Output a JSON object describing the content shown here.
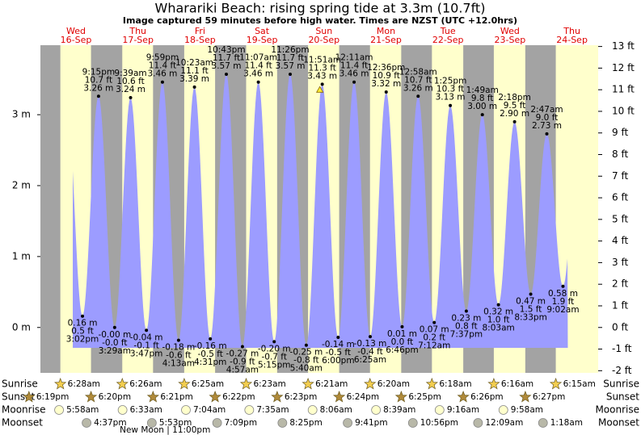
{
  "chart_data": {
    "type": "tide",
    "title": "Wharariki Beach: rising  spring tide at 3.3m (10.7ft)",
    "subtitle": "Image captured 59 minutes before high water. Times are NZST (UTC +12.0hrs)",
    "ylim": [
      -0.64,
      3.98
    ],
    "yticks": [
      {
        "value": 0,
        "label": "0 m"
      },
      {
        "value": 1,
        "label": "1 m"
      },
      {
        "value": 2,
        "label": "2 m"
      },
      {
        "value": 3,
        "label": "3 m"
      }
    ],
    "y2lim": [
      -2.1,
      13.06
    ],
    "y2ticks": [
      {
        "value": -2,
        "label": "-2 ft"
      },
      {
        "value": -1,
        "label": "-1 ft"
      },
      {
        "value": 0,
        "label": "0 ft"
      },
      {
        "value": 1,
        "label": "1 ft"
      },
      {
        "value": 2,
        "label": "2 ft"
      },
      {
        "value": 3,
        "label": "3 ft"
      },
      {
        "value": 4,
        "label": "4 ft"
      },
      {
        "value": 5,
        "label": "5 ft"
      },
      {
        "value": 6,
        "label": "6 ft"
      },
      {
        "value": 7,
        "label": "7 ft"
      },
      {
        "value": 8,
        "label": "8 ft"
      },
      {
        "value": 9,
        "label": "9 ft"
      },
      {
        "value": 10,
        "label": "10 ft"
      },
      {
        "value": 11,
        "label": "11 ft"
      },
      {
        "value": 12,
        "label": "12 ft"
      },
      {
        "value": 13,
        "label": "13 ft"
      }
    ],
    "row_labels": [
      "Sunrise",
      "Sunset",
      "Moonrise",
      "Moonset"
    ],
    "prior_sunset": "6:19pm",
    "days": [
      {
        "weekday": "Wed",
        "date": "16-Sep",
        "sunrise": "6:28am",
        "sunset": "6:20pm",
        "moonrise": "5:58am",
        "moonset": "4:37pm",
        "tides": [
          {
            "time": "3:02pm",
            "m": 0.16,
            "m_label": "0.16 m",
            "ft_label": "0.5 ft"
          },
          {
            "time": "9:15pm",
            "m": 3.26,
            "m_label": "3.26 m",
            "ft_label": "10.7 ft"
          }
        ]
      },
      {
        "weekday": "Thu",
        "date": "17-Sep",
        "sunrise": "6:26am",
        "sunset": "6:21pm",
        "moonrise": "6:33am",
        "moonset": "5:53pm",
        "new_moon": {
          "label": "New Moon",
          "time": "11:00pm"
        },
        "tides": [
          {
            "time": "3:29am",
            "m": 0,
            "m_label": "-0.00 m",
            "ft_label": "-0.0 ft"
          },
          {
            "time": "9:39am",
            "m": 3.24,
            "m_label": "3.24 m",
            "ft_label": "10.6 ft"
          },
          {
            "time": "3:47pm",
            "m": -0.04,
            "m_label": "-0.04 m",
            "ft_label": "-0.1 ft"
          },
          {
            "time": "9:59pm",
            "m": 3.46,
            "m_label": "3.46 m",
            "ft_label": "11.4 ft"
          }
        ]
      },
      {
        "weekday": "Fri",
        "date": "18-Sep",
        "sunrise": "6:25am",
        "sunset": "6:22pm",
        "moonrise": "7:04am",
        "moonset": "7:09pm",
        "tides": [
          {
            "time": "4:13am",
            "m": -0.18,
            "m_label": "-0.18 m",
            "ft_label": "-0.6 ft"
          },
          {
            "time": "10:23am",
            "m": 3.39,
            "m_label": "3.39 m",
            "ft_label": "11.1 ft"
          },
          {
            "time": "4:31pm",
            "m": -0.16,
            "m_label": "-0.16 m",
            "ft_label": "-0.5 ft"
          },
          {
            "time": "10:43pm",
            "m": 3.57,
            "m_label": "3.57 m",
            "ft_label": "11.7 ft"
          }
        ]
      },
      {
        "weekday": "Sat",
        "date": "19-Sep",
        "sunrise": "6:23am",
        "sunset": "6:23pm",
        "moonrise": "7:35am",
        "moonset": "8:25pm",
        "tides": [
          {
            "time": "4:57am",
            "m": -0.27,
            "m_label": "-0.27 m",
            "ft_label": "-0.9 ft"
          },
          {
            "time": "11:07am",
            "m": 3.46,
            "m_label": "3.46 m",
            "ft_label": "11.4 ft"
          },
          {
            "time": "5:15pm",
            "m": -0.2,
            "m_label": "-0.20 m",
            "ft_label": "-0.7 ft"
          },
          {
            "time": "11:26pm",
            "m": 3.57,
            "m_label": "3.57 m",
            "ft_label": "11.7 ft"
          }
        ]
      },
      {
        "weekday": "Sun",
        "date": "20-Sep",
        "sunrise": "6:21am",
        "sunset": "6:24pm",
        "moonrise": "8:06am",
        "moonset": "9:41pm",
        "tides": [
          {
            "time": "5:40am",
            "m": -0.25,
            "m_label": "-0.25 m",
            "ft_label": "-0.8 ft"
          },
          {
            "time": "11:51am",
            "m": 3.43,
            "m_label": "3.43 m",
            "ft_label": "11.3 ft"
          },
          {
            "time": "6:00pm",
            "m": -0.14,
            "m_label": "-0.14 m",
            "ft_label": "-0.5 ft"
          }
        ]
      },
      {
        "weekday": "Mon",
        "date": "21-Sep",
        "sunrise": "6:20am",
        "sunset": "6:25pm",
        "moonrise": "8:39am",
        "moonset": "10:56pm",
        "tides": [
          {
            "time": "12:11am",
            "m": 3.46,
            "m_label": "3.46 m",
            "ft_label": "11.4 ft"
          },
          {
            "time": "6:25am",
            "m": -0.13,
            "m_label": "-0.13 m",
            "ft_label": "-0.4 ft"
          },
          {
            "time": "12:36pm",
            "m": 3.32,
            "m_label": "3.32 m",
            "ft_label": "10.9 ft"
          },
          {
            "time": "6:46pm",
            "m": 0.01,
            "m_label": "0.01 m",
            "ft_label": "0.0 ft"
          }
        ]
      },
      {
        "weekday": "Tue",
        "date": "22-Sep",
        "sunrise": "6:18am",
        "sunset": "6:26pm",
        "moonrise": "9:16am",
        "tides": [
          {
            "time": "12:58am",
            "m": 3.26,
            "m_label": "3.26 m",
            "ft_label": "10.7 ft"
          },
          {
            "time": "7:12am",
            "m": 0.07,
            "m_label": "0.07 m",
            "ft_label": "0.2 ft"
          },
          {
            "time": "1:25pm",
            "m": 3.13,
            "m_label": "3.13 m",
            "ft_label": "10.3 ft"
          },
          {
            "time": "7:37pm",
            "m": 0.23,
            "m_label": "0.23 m",
            "ft_label": "0.8 ft"
          }
        ]
      },
      {
        "weekday": "Wed",
        "date": "23-Sep",
        "sunrise": "6:16am",
        "sunset": "6:27pm",
        "moonrise": "9:58am",
        "moonset": "12:09am",
        "tides": [
          {
            "time": "1:49am",
            "m": 3.0,
            "m_label": "3.00 m",
            "ft_label": "9.8 ft"
          },
          {
            "time": "8:03am",
            "m": 0.32,
            "m_label": "0.32 m",
            "ft_label": "1.0 ft"
          },
          {
            "time": "2:18pm",
            "m": 2.9,
            "m_label": "2.90 m",
            "ft_label": "9.5 ft"
          },
          {
            "time": "8:33pm",
            "m": 0.47,
            "m_label": "0.47 m",
            "ft_label": "1.5 ft"
          }
        ]
      },
      {
        "weekday": "Thu",
        "date": "24-Sep",
        "sunrise": "6:15am",
        "moonset": "1:18am",
        "tides": [
          {
            "time": "2:47am",
            "m": 2.73,
            "m_label": "2.73 m",
            "ft_label": "9.0 ft"
          },
          {
            "time": "9:02am",
            "m": 0.58,
            "m_label": "0.58 m",
            "ft_label": "1.9 ft"
          }
        ]
      }
    ]
  }
}
